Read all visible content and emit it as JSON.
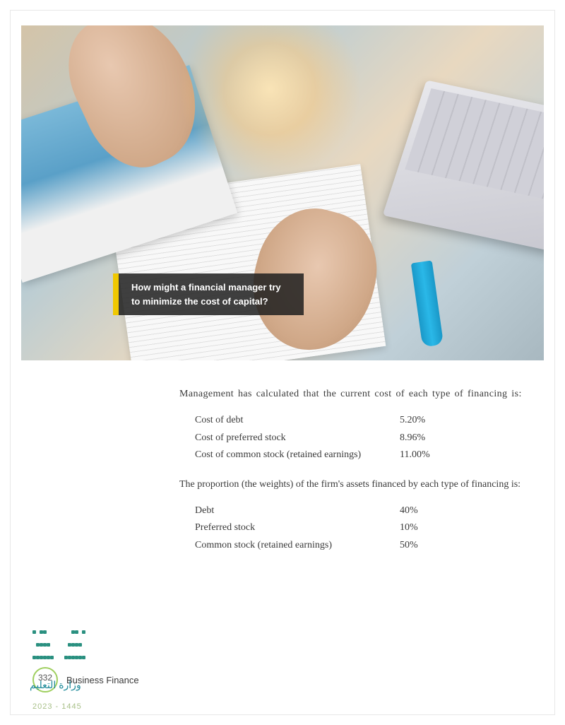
{
  "caption": "How might a financial manager try to minimize the cost of capital?",
  "intro1": "Management has calculated that the current cost of each type of financing is:",
  "costTable": {
    "rows": [
      {
        "label": "Cost of debt",
        "value": "5.20%"
      },
      {
        "label": "Cost of preferred stock",
        "value": "8.96%"
      },
      {
        "label": "Cost of common stock (retained earnings)",
        "value": "11.00%"
      }
    ]
  },
  "intro2": "The proportion (the weights) of the firm's assets financed by each type of financing is:",
  "weightTable": {
    "rows": [
      {
        "label": "Debt",
        "value": "40%"
      },
      {
        "label": "Preferred stock",
        "value": "10%"
      },
      {
        "label": "Common stock (retained earnings)",
        "value": "50%"
      }
    ]
  },
  "footer": {
    "pageNumber": "332",
    "bookTitle": "Business Finance",
    "arabic": "وزارة التعليم",
    "subline": "2023 - 1445"
  },
  "colors": {
    "accentYellow": "#f0c800",
    "captionBg": "rgba(30,30,30,0.85)",
    "logoTeal": "#2a9080",
    "circleGreen": "#9fcf5f",
    "textColor": "#3a3a3a"
  }
}
